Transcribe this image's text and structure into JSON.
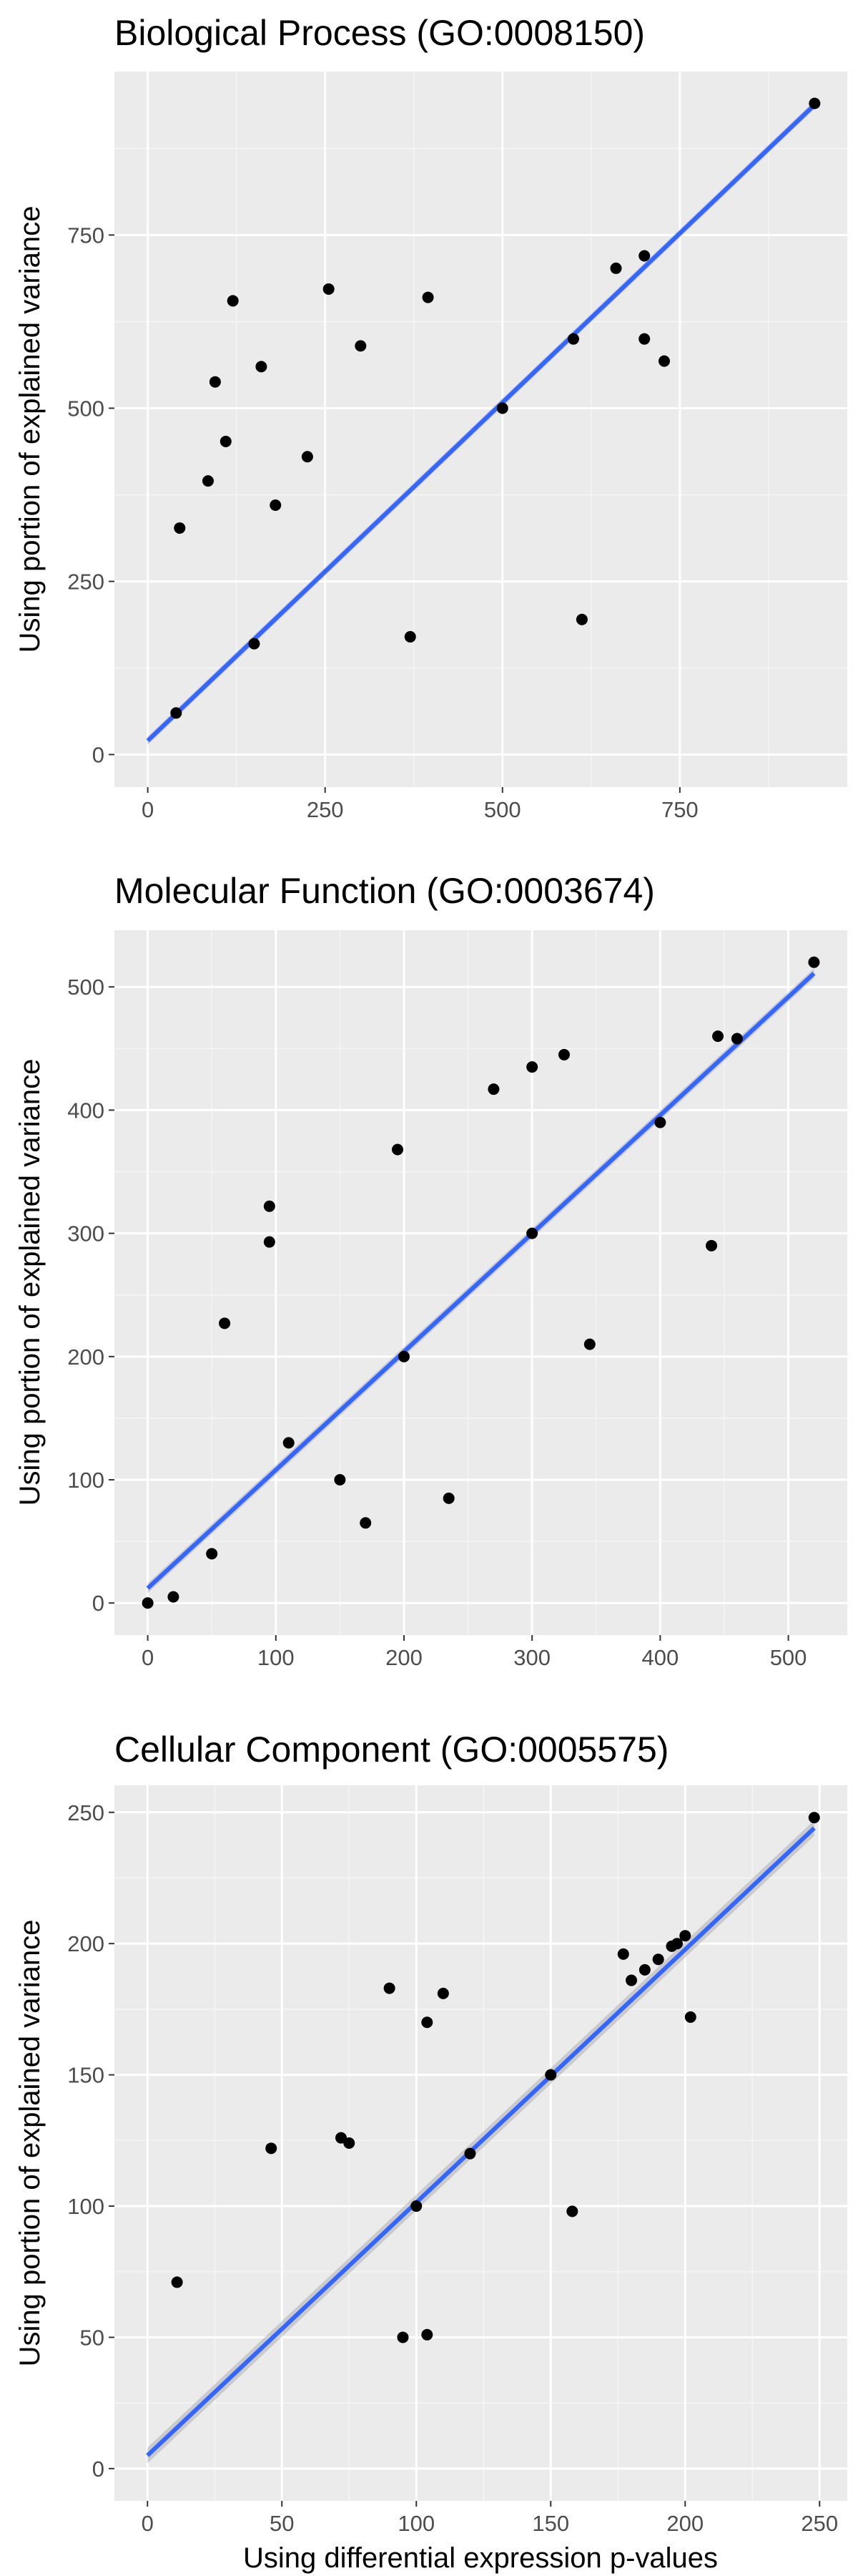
{
  "colors": {
    "panel_background": "#ebebeb",
    "grid_major": "#ffffff",
    "grid_minor": "#f5f5f5",
    "points": "#000000",
    "fit_line": "#3366ff",
    "confidence_band": "#999999",
    "tick_text": "#4d4d4d",
    "tick_mark": "#333333"
  },
  "chart_data": [
    {
      "type": "scatter",
      "title": "Biological Process (GO:0008150)",
      "xlabel": "",
      "ylabel": "Using portion of explained variance",
      "xlim": [
        -47,
        986
      ],
      "ylim": [
        -47,
        986
      ],
      "xticks": [
        0,
        250,
        500,
        750
      ],
      "xtick_labels": [
        "0",
        "250",
        "500",
        "750"
      ],
      "yticks": [
        0,
        250,
        500,
        750
      ],
      "ytick_labels": [
        "0",
        "250",
        "500",
        "750"
      ],
      "grid": true,
      "legend": "none",
      "smooth": {
        "method": "linear",
        "line_x": [
          0,
          940
        ],
        "line_y": [
          20,
          938
        ],
        "band_halfwidth": 6
      },
      "points": [
        [
          940,
          940
        ],
        [
          120,
          655
        ],
        [
          255,
          672
        ],
        [
          395,
          660
        ],
        [
          95,
          538
        ],
        [
          160,
          560
        ],
        [
          110,
          452
        ],
        [
          85,
          395
        ],
        [
          45,
          327
        ],
        [
          612,
          195
        ],
        [
          370,
          170
        ],
        [
          728,
          568
        ],
        [
          700,
          720
        ],
        [
          660,
          702
        ],
        [
          300,
          590
        ],
        [
          225,
          430
        ],
        [
          180,
          360
        ],
        [
          40,
          60
        ],
        [
          150,
          160
        ],
        [
          500,
          500
        ],
        [
          600,
          600
        ],
        [
          700,
          600
        ]
      ]
    },
    {
      "type": "scatter",
      "title": "Molecular Function (GO:0003674)",
      "xlabel": "",
      "ylabel": "Using portion of explained variance",
      "xlim": [
        -26,
        546
      ],
      "ylim": [
        -26,
        546
      ],
      "xticks": [
        0,
        100,
        200,
        300,
        400,
        500
      ],
      "xtick_labels": [
        "0",
        "100",
        "200",
        "300",
        "400",
        "500"
      ],
      "yticks": [
        0,
        100,
        200,
        300,
        400,
        500
      ],
      "ytick_labels": [
        "0",
        "100",
        "200",
        "300",
        "400",
        "500"
      ],
      "grid": true,
      "legend": "none",
      "smooth": {
        "method": "linear",
        "line_x": [
          0,
          520
        ],
        "line_y": [
          12,
          511
        ],
        "band_halfwidth": 4
      },
      "points": [
        [
          520,
          520
        ],
        [
          95,
          322
        ],
        [
          95,
          293
        ],
        [
          60,
          227
        ],
        [
          195,
          368
        ],
        [
          345,
          210
        ],
        [
          300,
          435
        ],
        [
          325,
          445
        ],
        [
          270,
          417
        ],
        [
          440,
          290
        ],
        [
          235,
          85
        ],
        [
          170,
          65
        ],
        [
          460,
          458
        ],
        [
          445,
          460
        ],
        [
          110,
          130
        ],
        [
          400,
          390
        ],
        [
          300,
          300
        ],
        [
          200,
          200
        ],
        [
          150,
          100
        ],
        [
          50,
          40
        ],
        [
          20,
          5
        ],
        [
          0,
          0
        ]
      ]
    },
    {
      "type": "scatter",
      "title": "Cellular Component (GO:0005575)",
      "xlabel": "Using differential expression p-values",
      "ylabel": "Using portion of explained variance",
      "xlim": [
        -12.3,
        260.3
      ],
      "ylim": [
        -12.3,
        260.3
      ],
      "xticks": [
        0,
        50,
        100,
        150,
        200,
        250
      ],
      "xtick_labels": [
        "0",
        "50",
        "100",
        "150",
        "200",
        "250"
      ],
      "yticks": [
        0,
        50,
        100,
        150,
        200,
        250
      ],
      "ytick_labels": [
        "0",
        "50",
        "100",
        "150",
        "200",
        "250"
      ],
      "grid": true,
      "legend": "none",
      "smooth": {
        "method": "linear",
        "line_x": [
          0,
          248
        ],
        "line_y": [
          5,
          244
        ],
        "band_halfwidth": 3
      },
      "points": [
        [
          248,
          248
        ],
        [
          90,
          183
        ],
        [
          110,
          181
        ],
        [
          104,
          170
        ],
        [
          46,
          122
        ],
        [
          72,
          126
        ],
        [
          75,
          124
        ],
        [
          11,
          71
        ],
        [
          104,
          51
        ],
        [
          95,
          50
        ],
        [
          158,
          98
        ],
        [
          177,
          196
        ],
        [
          202,
          172
        ],
        [
          200,
          203
        ],
        [
          197,
          200
        ],
        [
          195,
          199
        ],
        [
          190,
          194
        ],
        [
          185,
          190
        ],
        [
          180,
          186
        ],
        [
          150,
          150
        ],
        [
          120,
          120
        ],
        [
          100,
          100
        ]
      ]
    }
  ]
}
